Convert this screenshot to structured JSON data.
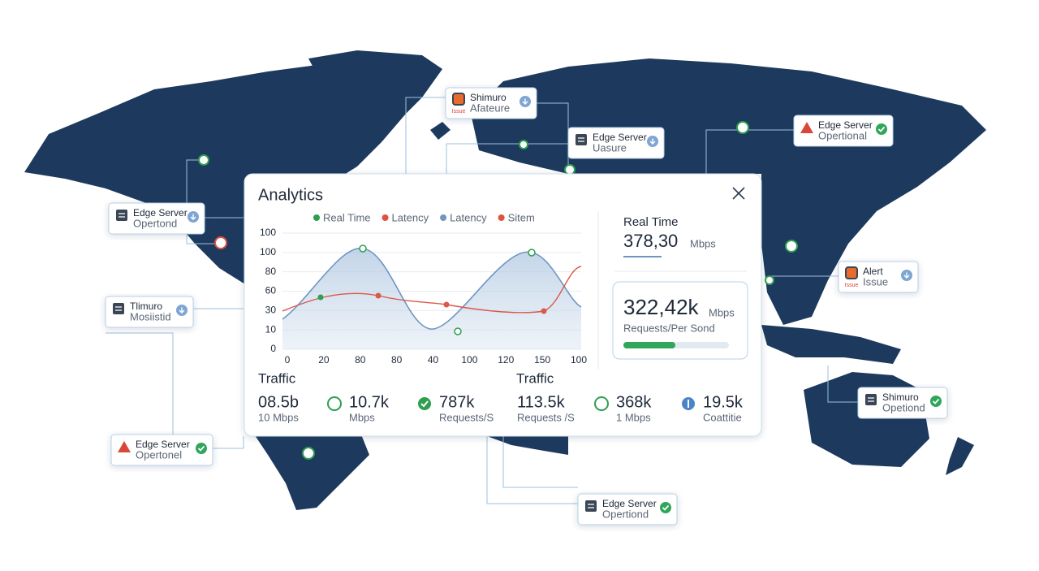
{
  "panel": {
    "title": "Analytics",
    "legend": [
      "Real Time",
      "Latency",
      "Latency",
      "Sitem"
    ],
    "yticks": [
      "100",
      "100",
      "80",
      "60",
      "30",
      "10",
      "0"
    ],
    "xticks": [
      "0",
      "20",
      "80",
      "80",
      "40",
      "100",
      "120",
      "150",
      "100"
    ],
    "realtime": {
      "label": "Real Time",
      "value": "378,30",
      "unit": "Mbps"
    },
    "requests": {
      "value": "322,42k",
      "unit": "Mbps",
      "label": "Requests/Per Sond"
    },
    "traffic_left": {
      "title": "Traffic",
      "stats": [
        {
          "value": "08.5b",
          "label": "10 Mbps"
        },
        {
          "value": "10.7k",
          "label": "Mbps"
        },
        {
          "value": "787k",
          "label": "Requests/S"
        }
      ]
    },
    "traffic_right": {
      "title": "Traffic",
      "stats": [
        {
          "value": "113.5k",
          "label": "Requests /S"
        },
        {
          "value": "368k",
          "label": "1 Mbps"
        },
        {
          "value": "19.5k",
          "label": "Coattitie"
        }
      ]
    }
  },
  "servers": [
    {
      "title": "Shimuro",
      "subtitle": "Afateure",
      "tag": "Issue",
      "icon": "alert",
      "status": "info"
    },
    {
      "title": "Edge Server",
      "subtitle": "Uasure",
      "icon": "server",
      "status": "info"
    },
    {
      "title": "Edge Server",
      "subtitle": "Opertional",
      "icon": "warning",
      "status": "ok"
    },
    {
      "title": "Edge Server",
      "subtitle": "Opertond",
      "icon": "server",
      "status": "info"
    },
    {
      "title": "Tlimuro",
      "subtitle": "Mosiistid",
      "icon": "server",
      "status": "info"
    },
    {
      "title": "Alert",
      "subtitle": "Issue",
      "tag": "Issue",
      "icon": "alert",
      "status": "info"
    },
    {
      "title": "Shimuro",
      "subtitle": "Opetiond",
      "icon": "server",
      "status": "ok"
    },
    {
      "title": "Edge Server",
      "subtitle": "Opertonel",
      "icon": "warning",
      "status": "ok"
    },
    {
      "title": "Edge Server",
      "subtitle": "Opertiond",
      "icon": "server",
      "status": "ok"
    }
  ]
}
